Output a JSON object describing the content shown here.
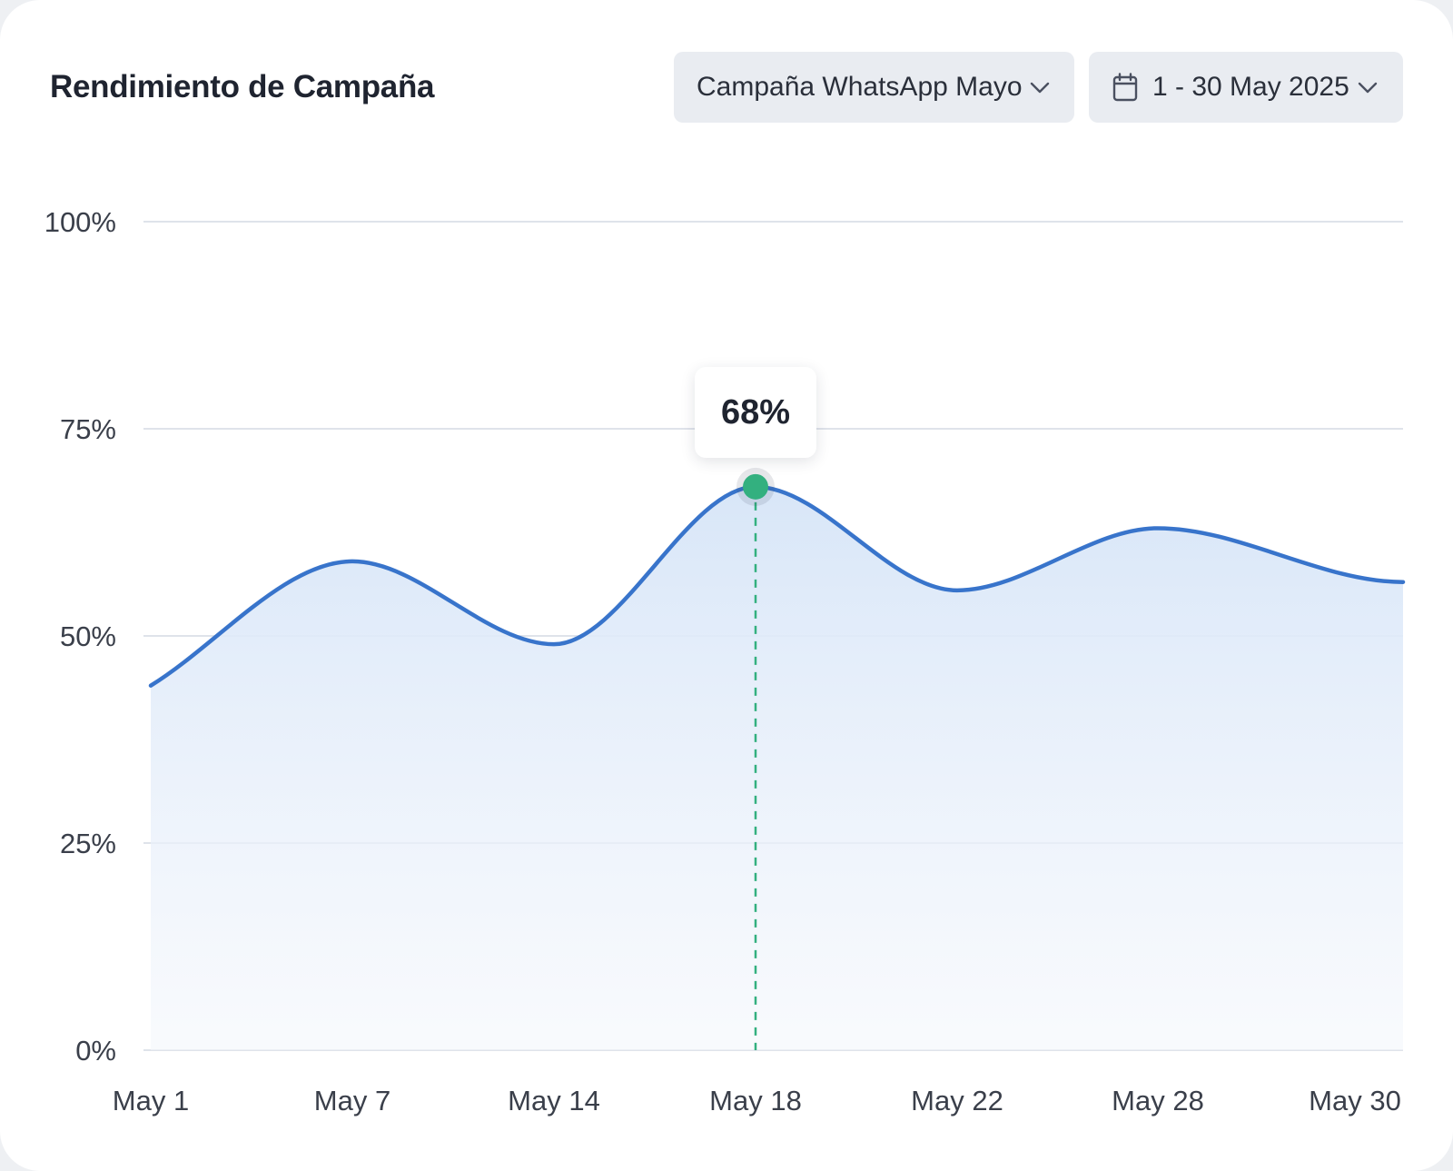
{
  "header": {
    "title": "Rendimiento de Campaña",
    "campaign_select": {
      "value": "Campaña WhatsApp Mayo",
      "icon": "chevron-down-icon"
    },
    "date_select": {
      "value": "1 - 30 May 2025",
      "icon": "calendar-icon",
      "chevron": "chevron-down-icon"
    }
  },
  "tooltip": {
    "value": "68%",
    "category": "May 18"
  },
  "colors": {
    "line": "#3874cb",
    "area_top": "#d8e6f8",
    "marker": "#33b07f",
    "crosshair": "#33b07f",
    "grid": "#dfe3ea"
  },
  "chart_data": {
    "type": "area",
    "categories": [
      "May 1",
      "May 7",
      "May 14",
      "May 18",
      "May 22",
      "May 28",
      "May 30"
    ],
    "values": [
      44,
      59,
      49,
      68,
      55.5,
      63,
      56.5
    ],
    "y_ticks": [
      "0%",
      "25%",
      "50%",
      "75%",
      "100%"
    ],
    "ylim": [
      0,
      100
    ],
    "grid": true,
    "highlight": {
      "category": "May 18",
      "value": 68,
      "label": "68%"
    },
    "title": "",
    "xlabel": "",
    "ylabel": ""
  }
}
